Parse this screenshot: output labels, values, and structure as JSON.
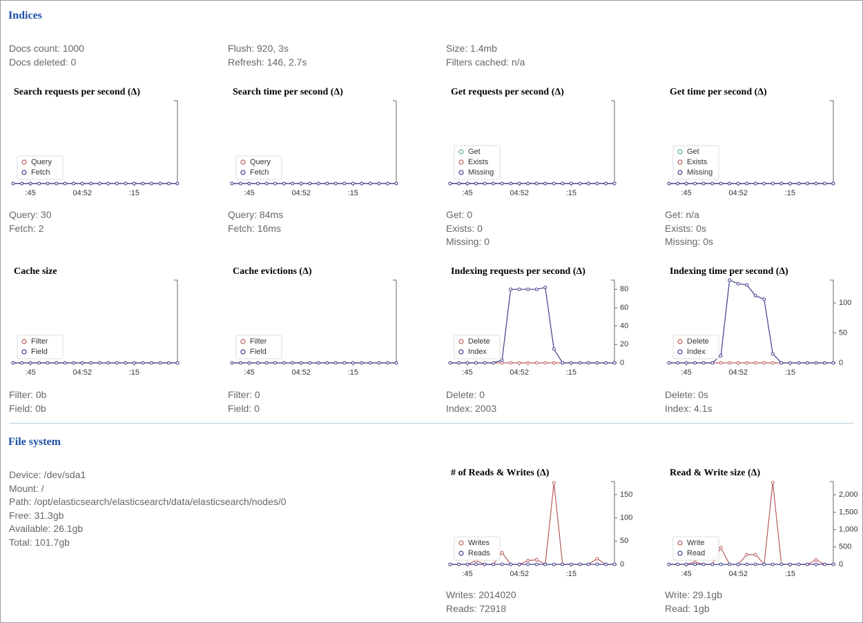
{
  "indices": {
    "title": "Indices",
    "stats": [
      [
        "Docs count: 1000",
        "Docs deleted: 0"
      ],
      [
        "Flush: 920, 3s",
        "Refresh: 146, 2.7s"
      ],
      [
        "Size: 1.4mb",
        "Filters cached: n/a"
      ]
    ],
    "chart_stats": [
      [
        "Query: 30",
        "Fetch: 2"
      ],
      [
        "Query: 84ms",
        "Fetch: 16ms"
      ],
      [
        "Get: 0",
        "Exists: 0",
        "Missing: 0"
      ],
      [
        "Get: n/a",
        "Exists: 0s",
        "Missing: 0s"
      ],
      [
        "Filter: 0b",
        "Field: 0b"
      ],
      [
        "Filter: 0",
        "Field: 0"
      ],
      [
        "Delete: 0",
        "Index: 2003"
      ],
      [
        "Delete: 0s",
        "Index: 4.1s"
      ]
    ]
  },
  "file_system": {
    "title": "File system",
    "stats": [
      "Device: /dev/sda1",
      "Mount: /",
      "Path: /opt/elasticsearch/elasticsearch/data/elasticsearch/nodes/0",
      "Free: 31.3gb",
      "Available: 26.1gb",
      "Total: 101.7gb"
    ],
    "chart_stats": [
      [
        "Writes: 2014020",
        "Reads: 72918"
      ],
      [
        "Write: 29.1gb",
        "Read: 1gb"
      ]
    ]
  },
  "chart_data": [
    {
      "type": "line",
      "title": "Search requests per second (Δ)",
      "categories": [
        null,
        null,
        ":45",
        null,
        null,
        null,
        null,
        null,
        "04:52",
        null,
        null,
        null,
        null,
        null,
        ":15",
        null,
        null,
        null,
        null,
        null
      ],
      "ylim": [
        0,
        1
      ],
      "yticks": [],
      "series": [
        {
          "name": "Query",
          "color": "#b85a5a",
          "values": [
            0,
            0,
            0,
            0,
            0,
            0,
            0,
            0,
            0,
            0,
            0,
            0,
            0,
            0,
            0,
            0,
            0,
            0,
            0,
            0
          ]
        },
        {
          "name": "Fetch",
          "color": "#3c3c8c",
          "values": [
            0,
            0,
            0,
            0,
            0,
            0,
            0,
            0,
            0,
            0,
            0,
            0,
            0,
            0,
            0,
            0,
            0,
            0,
            0,
            0
          ]
        }
      ]
    },
    {
      "type": "line",
      "title": "Search time per second (Δ)",
      "categories": [
        null,
        null,
        ":45",
        null,
        null,
        null,
        null,
        null,
        "04:52",
        null,
        null,
        null,
        null,
        null,
        ":15",
        null,
        null,
        null,
        null,
        null
      ],
      "ylim": [
        0,
        1
      ],
      "yticks": [],
      "series": [
        {
          "name": "Query",
          "color": "#b85a5a",
          "values": [
            0,
            0,
            0,
            0,
            0,
            0,
            0,
            0,
            0,
            0,
            0,
            0,
            0,
            0,
            0,
            0,
            0,
            0,
            0,
            0
          ]
        },
        {
          "name": "Fetch",
          "color": "#3c3c8c",
          "values": [
            0,
            0,
            0,
            0,
            0,
            0,
            0,
            0,
            0,
            0,
            0,
            0,
            0,
            0,
            0,
            0,
            0,
            0,
            0,
            0
          ]
        }
      ]
    },
    {
      "type": "line",
      "title": "Get requests per second (Δ)",
      "categories": [
        null,
        null,
        ":45",
        null,
        null,
        null,
        null,
        null,
        "04:52",
        null,
        null,
        null,
        null,
        null,
        ":15",
        null,
        null,
        null,
        null,
        null
      ],
      "ylim": [
        0,
        1
      ],
      "yticks": [],
      "series": [
        {
          "name": "Get",
          "color": "#5aaa84",
          "values": [
            0,
            0,
            0,
            0,
            0,
            0,
            0,
            0,
            0,
            0,
            0,
            0,
            0,
            0,
            0,
            0,
            0,
            0,
            0,
            0
          ]
        },
        {
          "name": "Exists",
          "color": "#b85a5a",
          "values": [
            0,
            0,
            0,
            0,
            0,
            0,
            0,
            0,
            0,
            0,
            0,
            0,
            0,
            0,
            0,
            0,
            0,
            0,
            0,
            0
          ]
        },
        {
          "name": "Missing",
          "color": "#3c3c8c",
          "values": [
            0,
            0,
            0,
            0,
            0,
            0,
            0,
            0,
            0,
            0,
            0,
            0,
            0,
            0,
            0,
            0,
            0,
            0,
            0,
            0
          ]
        }
      ]
    },
    {
      "type": "line",
      "title": "Get time per second (Δ)",
      "categories": [
        null,
        null,
        ":45",
        null,
        null,
        null,
        null,
        null,
        "04:52",
        null,
        null,
        null,
        null,
        null,
        ":15",
        null,
        null,
        null,
        null,
        null
      ],
      "ylim": [
        0,
        1
      ],
      "yticks": [],
      "series": [
        {
          "name": "Get",
          "color": "#5aaa84",
          "values": [
            0,
            0,
            0,
            0,
            0,
            0,
            0,
            0,
            0,
            0,
            0,
            0,
            0,
            0,
            0,
            0,
            0,
            0,
            0,
            0
          ]
        },
        {
          "name": "Exists",
          "color": "#b85a5a",
          "values": [
            0,
            0,
            0,
            0,
            0,
            0,
            0,
            0,
            0,
            0,
            0,
            0,
            0,
            0,
            0,
            0,
            0,
            0,
            0,
            0
          ]
        },
        {
          "name": "Missing",
          "color": "#3c3c8c",
          "values": [
            0,
            0,
            0,
            0,
            0,
            0,
            0,
            0,
            0,
            0,
            0,
            0,
            0,
            0,
            0,
            0,
            0,
            0,
            0,
            0
          ]
        }
      ]
    },
    {
      "type": "line",
      "title": "Cache size",
      "categories": [
        null,
        null,
        ":45",
        null,
        null,
        null,
        null,
        null,
        "04:52",
        null,
        null,
        null,
        null,
        null,
        ":15",
        null,
        null,
        null,
        null,
        null
      ],
      "ylim": [
        0,
        1
      ],
      "yticks": [],
      "series": [
        {
          "name": "Filter",
          "color": "#b85a5a",
          "values": [
            0,
            0,
            0,
            0,
            0,
            0,
            0,
            0,
            0,
            0,
            0,
            0,
            0,
            0,
            0,
            0,
            0,
            0,
            0,
            0
          ]
        },
        {
          "name": "Field",
          "color": "#3c3c8c",
          "values": [
            0,
            0,
            0,
            0,
            0,
            0,
            0,
            0,
            0,
            0,
            0,
            0,
            0,
            0,
            0,
            0,
            0,
            0,
            0,
            0
          ]
        }
      ]
    },
    {
      "type": "line",
      "title": "Cache evictions (Δ)",
      "categories": [
        null,
        null,
        ":45",
        null,
        null,
        null,
        null,
        null,
        "04:52",
        null,
        null,
        null,
        null,
        null,
        ":15",
        null,
        null,
        null,
        null,
        null
      ],
      "ylim": [
        0,
        1
      ],
      "yticks": [],
      "series": [
        {
          "name": "Filter",
          "color": "#b85a5a",
          "values": [
            0,
            0,
            0,
            0,
            0,
            0,
            0,
            0,
            0,
            0,
            0,
            0,
            0,
            0,
            0,
            0,
            0,
            0,
            0,
            0
          ]
        },
        {
          "name": "Field",
          "color": "#3c3c8c",
          "values": [
            0,
            0,
            0,
            0,
            0,
            0,
            0,
            0,
            0,
            0,
            0,
            0,
            0,
            0,
            0,
            0,
            0,
            0,
            0,
            0
          ]
        }
      ]
    },
    {
      "type": "line",
      "title": "Indexing requests per second (Δ)",
      "categories": [
        null,
        null,
        ":45",
        null,
        null,
        null,
        null,
        null,
        "04:52",
        null,
        null,
        null,
        null,
        null,
        ":15",
        null,
        null,
        null,
        null,
        null
      ],
      "ylim": [
        0,
        90
      ],
      "yticks": [
        0,
        20,
        40,
        60,
        80
      ],
      "series": [
        {
          "name": "Delete",
          "color": "#b85a5a",
          "values": [
            0,
            0,
            0,
            0,
            0,
            0,
            0,
            0,
            0,
            0,
            0,
            0,
            0,
            0,
            0,
            0,
            0,
            0,
            0,
            0
          ]
        },
        {
          "name": "Index",
          "color": "#3c3c8c",
          "values": [
            0,
            0,
            0,
            0,
            0,
            0,
            3,
            80,
            80,
            80,
            80,
            82,
            15,
            0,
            0,
            0,
            0,
            0,
            0,
            0
          ]
        }
      ]
    },
    {
      "type": "line",
      "title": "Indexing time per second (Δ)",
      "categories": [
        null,
        null,
        ":45",
        null,
        null,
        null,
        null,
        null,
        "04:52",
        null,
        null,
        null,
        null,
        null,
        ":15",
        null,
        null,
        null,
        null,
        null
      ],
      "ylim": [
        0,
        138
      ],
      "yticks": [
        0,
        50,
        100
      ],
      "series": [
        {
          "name": "Delete",
          "color": "#b85a5a",
          "values": [
            0,
            0,
            0,
            0,
            0,
            0,
            0,
            0,
            0,
            0,
            0,
            0,
            0,
            0,
            0,
            0,
            0,
            0,
            0,
            0
          ]
        },
        {
          "name": "Index",
          "color": "#3c3c8c",
          "values": [
            0,
            0,
            0,
            0,
            0,
            0,
            12,
            138,
            132,
            130,
            112,
            106,
            15,
            0,
            0,
            0,
            0,
            0,
            0,
            0
          ]
        }
      ]
    },
    {
      "type": "line",
      "title": "# of Reads & Writes (Δ)",
      "categories": [
        null,
        null,
        ":45",
        null,
        null,
        null,
        null,
        null,
        "04:52",
        null,
        null,
        null,
        null,
        null,
        ":15",
        null,
        null,
        null,
        null,
        null
      ],
      "ylim": [
        0,
        178
      ],
      "yticks": [
        0,
        50,
        100,
        150
      ],
      "series": [
        {
          "name": "Writes",
          "color": "#b85a5a",
          "values": [
            0,
            0,
            0,
            8,
            0,
            0,
            25,
            0,
            0,
            8,
            10,
            0,
            175,
            0,
            0,
            0,
            0,
            12,
            0,
            0
          ]
        },
        {
          "name": "Reads",
          "color": "#3c3c8c",
          "values": [
            0,
            0,
            0,
            0,
            0,
            0,
            0,
            0,
            0,
            0,
            0,
            0,
            0,
            0,
            0,
            0,
            0,
            0,
            0,
            0
          ]
        }
      ]
    },
    {
      "type": "line",
      "title": "Read & Write size (Δ)",
      "categories": [
        null,
        null,
        ":45",
        null,
        null,
        null,
        null,
        null,
        "04:52",
        null,
        null,
        null,
        null,
        null,
        ":15",
        null,
        null,
        null,
        null,
        null
      ],
      "ylim": [
        0,
        2380
      ],
      "yticks": [
        0,
        500,
        {
          "value": 1000,
          "label": "1,000"
        },
        {
          "value": 1500,
          "label": "1,500"
        },
        {
          "value": 2000,
          "label": "2,000"
        }
      ],
      "series": [
        {
          "name": "Write",
          "color": "#b85a5a",
          "values": [
            0,
            0,
            0,
            60,
            0,
            0,
            480,
            0,
            0,
            280,
            280,
            0,
            2350,
            0,
            0,
            0,
            0,
            130,
            0,
            0
          ]
        },
        {
          "name": "Read",
          "color": "#3c3c8c",
          "values": [
            0,
            0,
            0,
            0,
            0,
            0,
            0,
            0,
            0,
            0,
            0,
            0,
            0,
            0,
            0,
            0,
            0,
            0,
            0,
            0
          ]
        }
      ]
    }
  ]
}
